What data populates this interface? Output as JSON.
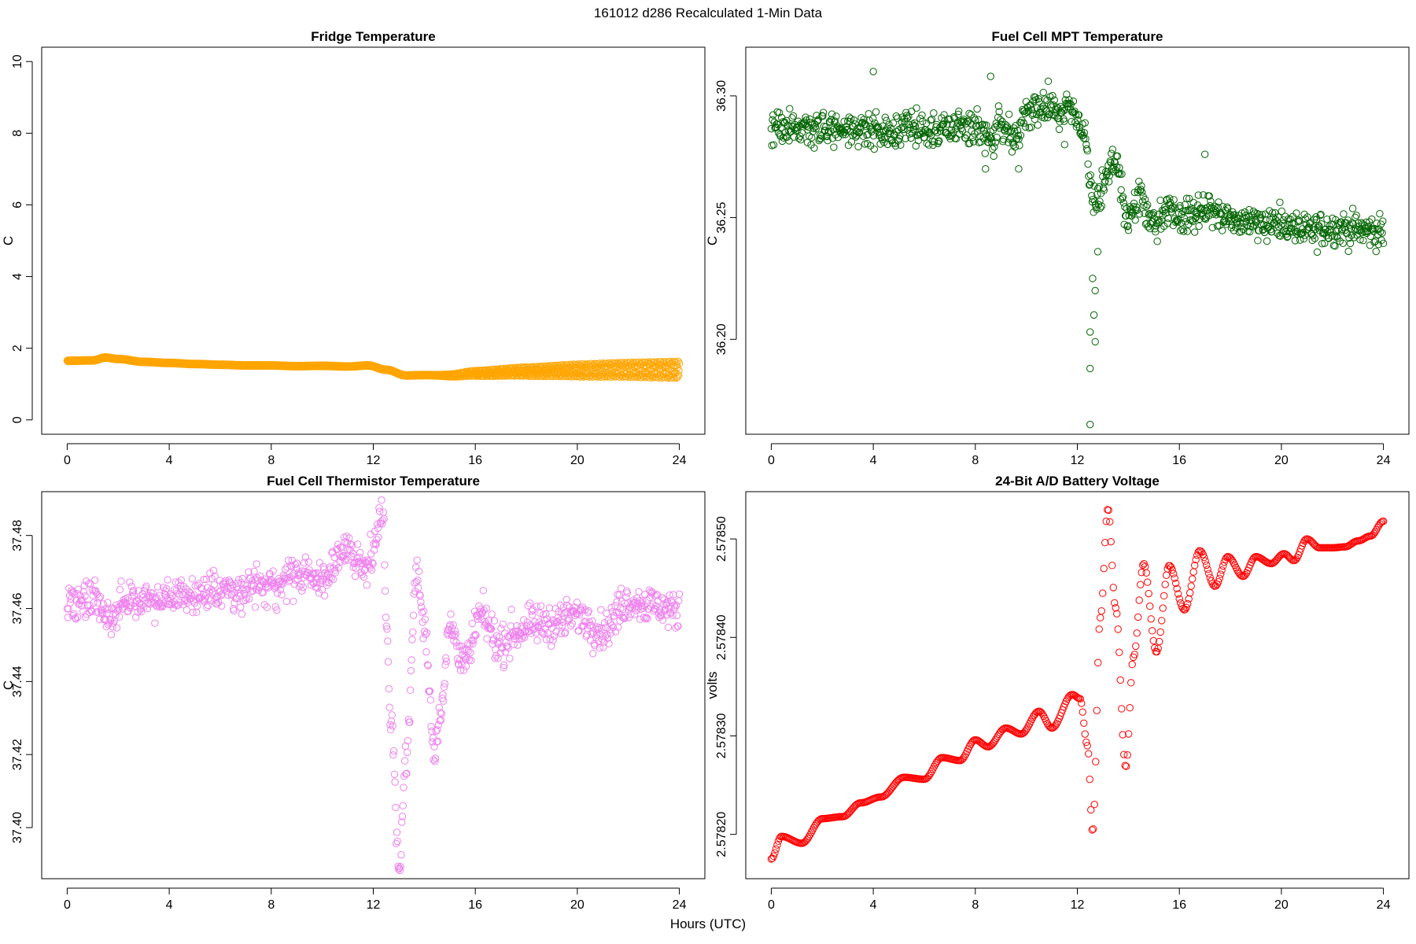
{
  "page": {
    "suptitle": "161012   d286   Recalculated 1-Min Data",
    "xlabel": "Hours (UTC)"
  },
  "chart_data": [
    {
      "type": "scatter",
      "title": "Fridge Temperature",
      "ylabel": "C",
      "color": "#FFA500",
      "xlim": [
        -1,
        25
      ],
      "ylim": [
        -0.4,
        10.4
      ],
      "xticks": [
        0,
        4,
        8,
        12,
        16,
        20,
        24
      ],
      "yticks": [
        0,
        2,
        4,
        6,
        8,
        10
      ],
      "ytick_labels": [
        "0",
        "2",
        "4",
        "6",
        "8",
        "10"
      ],
      "profile": [
        [
          0,
          1.65
        ],
        [
          1,
          1.66
        ],
        [
          1.5,
          1.74
        ],
        [
          2,
          1.7
        ],
        [
          3,
          1.62
        ],
        [
          4,
          1.59
        ],
        [
          5,
          1.56
        ],
        [
          6,
          1.54
        ],
        [
          7,
          1.52
        ],
        [
          8,
          1.52
        ],
        [
          9,
          1.5
        ],
        [
          10,
          1.51
        ],
        [
          11,
          1.49
        ],
        [
          11.8,
          1.52
        ],
        [
          12.5,
          1.4
        ],
        [
          13.3,
          1.24
        ],
        [
          14,
          1.25
        ],
        [
          15,
          1.24
        ],
        [
          16,
          1.3
        ],
        [
          18,
          1.35
        ],
        [
          20,
          1.38
        ],
        [
          22,
          1.4
        ],
        [
          24,
          1.4
        ]
      ],
      "spread": [
        [
          0,
          0.02
        ],
        [
          14.5,
          0.02
        ],
        [
          16,
          0.08
        ],
        [
          20,
          0.18
        ],
        [
          24,
          0.24
        ]
      ],
      "noise": 0,
      "n": 1440
    },
    {
      "type": "scatter",
      "title": "Fuel Cell MPT Temperature",
      "ylabel": "C",
      "color": "#006400",
      "xlim": [
        -1,
        25
      ],
      "ylim": [
        36.161,
        36.32
      ],
      "xticks": [
        0,
        4,
        8,
        12,
        16,
        20,
        24
      ],
      "yticks": [
        36.2,
        36.25,
        36.3
      ],
      "ytick_labels": [
        "36.20",
        "36.25",
        "36.30"
      ],
      "profile": [
        [
          0,
          36.287
        ],
        [
          4,
          36.286
        ],
        [
          8,
          36.287
        ],
        [
          8.6,
          36.282
        ],
        [
          9,
          36.29
        ],
        [
          9.5,
          36.283
        ],
        [
          10,
          36.293
        ],
        [
          11,
          36.296
        ],
        [
          12,
          36.292
        ],
        [
          12.3,
          36.283
        ],
        [
          12.6,
          36.255
        ],
        [
          13,
          36.262
        ],
        [
          13.5,
          36.272
        ],
        [
          14,
          36.25
        ],
        [
          14.5,
          36.258
        ],
        [
          15,
          36.245
        ],
        [
          15.5,
          36.255
        ],
        [
          16,
          36.25
        ],
        [
          17,
          36.253
        ],
        [
          18,
          36.249
        ],
        [
          19,
          36.249
        ],
        [
          20,
          36.247
        ],
        [
          21,
          36.244
        ],
        [
          22,
          36.246
        ],
        [
          23,
          36.245
        ],
        [
          24,
          36.244
        ]
      ],
      "spread": [
        [
          0,
          0
        ],
        [
          24,
          0
        ]
      ],
      "noise": 0.0035,
      "n": 1000,
      "outliers": [
        [
          4.0,
          36.31
        ],
        [
          8.6,
          36.308
        ],
        [
          12.5,
          36.203
        ],
        [
          12.5,
          36.188
        ],
        [
          12.5,
          36.165
        ],
        [
          12.65,
          36.21
        ],
        [
          12.7,
          36.199
        ],
        [
          12.7,
          36.22
        ],
        [
          8.4,
          36.27
        ],
        [
          9.7,
          36.27
        ],
        [
          11.5,
          36.28
        ],
        [
          17.0,
          36.276
        ],
        [
          12.8,
          36.236
        ],
        [
          12.6,
          36.225
        ]
      ]
    },
    {
      "type": "scatter",
      "title": "Fuel Cell Thermistor Temperature",
      "ylabel": "C",
      "color": "#EE82EE",
      "xlim": [
        -1,
        25
      ],
      "ylim": [
        37.386,
        37.492
      ],
      "xticks": [
        0,
        4,
        8,
        12,
        16,
        20,
        24
      ],
      "yticks": [
        37.4,
        37.42,
        37.44,
        37.46,
        37.48
      ],
      "ytick_labels": [
        "37.40",
        "37.42",
        "37.44",
        "37.46",
        "37.48"
      ],
      "profile": [
        [
          0,
          37.461
        ],
        [
          1,
          37.462
        ],
        [
          1.7,
          37.457
        ],
        [
          2.2,
          37.462
        ],
        [
          4,
          37.463
        ],
        [
          6,
          37.465
        ],
        [
          8,
          37.466
        ],
        [
          9,
          37.469
        ],
        [
          10,
          37.468
        ],
        [
          10.5,
          37.472
        ],
        [
          11,
          37.476
        ],
        [
          11.6,
          37.472
        ],
        [
          12,
          37.476
        ],
        [
          12.4,
          37.488
        ],
        [
          12.5,
          37.455
        ],
        [
          12.7,
          37.43
        ],
        [
          13,
          37.39
        ],
        [
          13.3,
          37.42
        ],
        [
          13.7,
          37.47
        ],
        [
          14,
          37.455
        ],
        [
          14.4,
          37.422
        ],
        [
          14.7,
          37.435
        ],
        [
          15,
          37.455
        ],
        [
          15.6,
          37.445
        ],
        [
          16.2,
          37.458
        ],
        [
          17,
          37.45
        ],
        [
          17.5,
          37.453
        ],
        [
          18,
          37.455
        ],
        [
          19,
          37.456
        ],
        [
          20,
          37.458
        ],
        [
          21,
          37.454
        ],
        [
          22,
          37.462
        ],
        [
          23,
          37.461
        ],
        [
          24,
          37.459
        ]
      ],
      "spread": [
        [
          0,
          0
        ],
        [
          24,
          0
        ]
      ],
      "noise": 0.0025,
      "n": 1000
    },
    {
      "type": "scatter",
      "title": "24-Bit A/D Battery Voltage",
      "ylabel": "volts",
      "color": "#FF0000",
      "xlim": [
        -1,
        25
      ],
      "ylim": [
        2.578155,
        2.578548
      ],
      "xticks": [
        0,
        4,
        8,
        12,
        16,
        20,
        24
      ],
      "yticks": [
        2.5782,
        2.5783,
        2.5784,
        2.5785
      ],
      "ytick_labels": [
        "2.57820",
        "2.57830",
        "2.57840",
        "2.57850"
      ],
      "profile": [
        [
          0,
          2.578175
        ],
        [
          0.4,
          2.578198
        ],
        [
          1.2,
          2.578191
        ],
        [
          2.0,
          2.578216
        ],
        [
          2.8,
          2.578218
        ],
        [
          3.5,
          2.578232
        ],
        [
          4.3,
          2.578238
        ],
        [
          5.2,
          2.578258
        ],
        [
          6.0,
          2.578256
        ],
        [
          6.7,
          2.578278
        ],
        [
          7.4,
          2.578275
        ],
        [
          8.0,
          2.578296
        ],
        [
          8.5,
          2.578289
        ],
        [
          9.2,
          2.578308
        ],
        [
          9.8,
          2.578302
        ],
        [
          10.5,
          2.578325
        ],
        [
          11.0,
          2.578308
        ],
        [
          11.8,
          2.578342
        ],
        [
          12.1,
          2.578338
        ],
        [
          12.4,
          2.57829
        ],
        [
          12.6,
          2.578202
        ],
        [
          12.9,
          2.57842
        ],
        [
          13.2,
          2.578531
        ],
        [
          13.5,
          2.57843
        ],
        [
          13.9,
          2.578268
        ],
        [
          14.2,
          2.57838
        ],
        [
          14.6,
          2.578475
        ],
        [
          15.1,
          2.578385
        ],
        [
          15.6,
          2.578473
        ],
        [
          16.2,
          2.578428
        ],
        [
          16.8,
          2.578488
        ],
        [
          17.4,
          2.578452
        ],
        [
          17.9,
          2.578482
        ],
        [
          18.5,
          2.578462
        ],
        [
          19.0,
          2.578482
        ],
        [
          19.6,
          2.578475
        ],
        [
          20.1,
          2.578485
        ],
        [
          20.5,
          2.578478
        ],
        [
          21.0,
          2.5785
        ],
        [
          21.5,
          2.578491
        ],
        [
          22.0,
          2.578491
        ],
        [
          22.5,
          2.578492
        ],
        [
          23.0,
          2.578498
        ],
        [
          23.5,
          2.578503
        ],
        [
          24.0,
          2.578518
        ]
      ],
      "spread": [
        [
          0,
          0
        ],
        [
          24,
          0
        ]
      ],
      "noise": 0,
      "n": 520
    }
  ]
}
